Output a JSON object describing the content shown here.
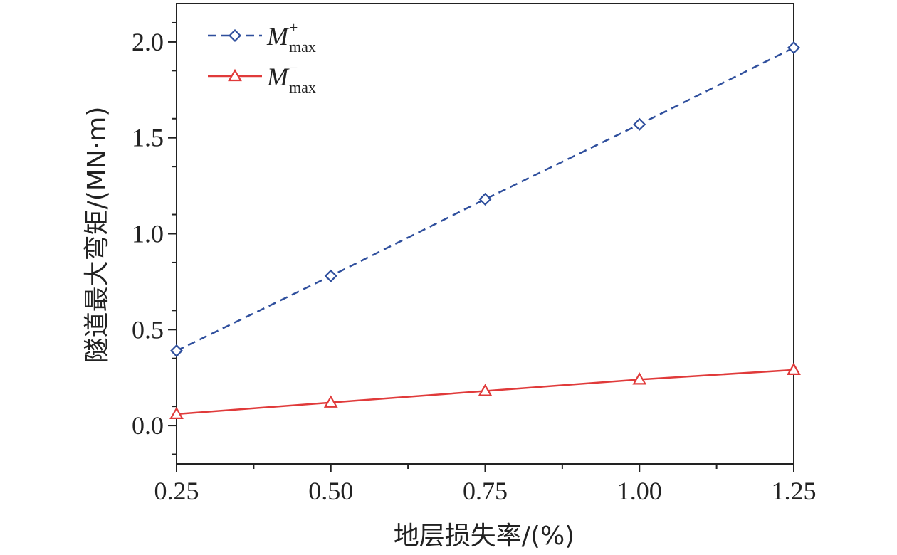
{
  "chart_data": {
    "type": "line",
    "title": "",
    "xlabel": "地层损失率/(%)",
    "ylabel": "隧道最大弯矩/(MN·m)",
    "x": [
      0.25,
      0.5,
      0.75,
      1.0,
      1.25
    ],
    "xlim": [
      0.25,
      1.25
    ],
    "ylim": [
      -0.2,
      2.2
    ],
    "x_ticks": [
      "0.25",
      "0.50",
      "0.75",
      "1.00",
      "1.25"
    ],
    "y_ticks": [
      "0.0",
      "0.5",
      "1.0",
      "1.5",
      "2.0"
    ],
    "x_tick_values": [
      0.25,
      0.5,
      0.75,
      1.0,
      1.25
    ],
    "y_tick_values": [
      0.0,
      0.5,
      1.0,
      1.5,
      2.0
    ],
    "grid": false,
    "legend_position": "top-left",
    "series": [
      {
        "name": "M+max",
        "name_main": "M",
        "name_sup": "+",
        "name_sub": "max",
        "values": [
          0.39,
          0.78,
          1.18,
          1.57,
          1.97
        ],
        "color": "#2f4f9d",
        "line_style": "dashed",
        "marker": "diamond"
      },
      {
        "name": "M−max",
        "name_main": "M",
        "name_sup": "−",
        "name_sub": "max",
        "values": [
          0.06,
          0.12,
          0.18,
          0.24,
          0.29
        ],
        "color": "#e03a3a",
        "line_style": "solid",
        "marker": "triangle"
      }
    ]
  }
}
